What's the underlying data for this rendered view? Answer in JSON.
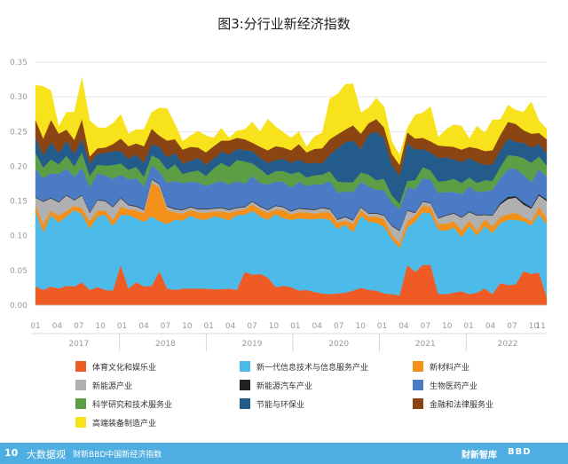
{
  "chart_data": {
    "type": "area",
    "title": "图3:分行业新经济指数",
    "stacked": true,
    "xlabel": "",
    "ylabel": "",
    "ylim": [
      0,
      0.35
    ],
    "yticks": [
      "0.00",
      "0.05",
      "0.10",
      "0.15",
      "0.20",
      "0.25",
      "0.30",
      "0.35"
    ],
    "xlim": [
      2017.0,
      2022.9
    ],
    "xticks": [
      {
        "x": 2017.0,
        "label": "01"
      },
      {
        "x": 2017.25,
        "label": "04"
      },
      {
        "x": 2017.5,
        "label": "07"
      },
      {
        "x": 2017.75,
        "label": "10"
      },
      {
        "x": 2018.0,
        "label": "01"
      },
      {
        "x": 2018.25,
        "label": "04"
      },
      {
        "x": 2018.5,
        "label": "07"
      },
      {
        "x": 2018.75,
        "label": "10"
      },
      {
        "x": 2019.0,
        "label": "01"
      },
      {
        "x": 2019.25,
        "label": "04"
      },
      {
        "x": 2019.5,
        "label": "07"
      },
      {
        "x": 2019.75,
        "label": "10"
      },
      {
        "x": 2020.0,
        "label": "01"
      },
      {
        "x": 2020.25,
        "label": "04"
      },
      {
        "x": 2020.5,
        "label": "07"
      },
      {
        "x": 2020.75,
        "label": "10"
      },
      {
        "x": 2021.0,
        "label": "01"
      },
      {
        "x": 2021.25,
        "label": "04"
      },
      {
        "x": 2021.5,
        "label": "07"
      },
      {
        "x": 2021.75,
        "label": "10"
      },
      {
        "x": 2022.0,
        "label": "01"
      },
      {
        "x": 2022.25,
        "label": "04"
      },
      {
        "x": 2022.5,
        "label": "07"
      },
      {
        "x": 2022.75,
        "label": "10"
      },
      {
        "x": 2022.83,
        "label": "11"
      }
    ],
    "year_labels": [
      {
        "x": 2017.5,
        "label": "2017"
      },
      {
        "x": 2018.5,
        "label": "2018"
      },
      {
        "x": 2019.5,
        "label": "2019"
      },
      {
        "x": 2020.5,
        "label": "2020"
      },
      {
        "x": 2021.5,
        "label": "2021"
      },
      {
        "x": 2022.45,
        "label": "2022"
      }
    ],
    "year_dividers": [
      2017.97,
      2018.97,
      2019.97,
      2020.97,
      2021.97
    ],
    "grid": true,
    "legend_position": "bottom",
    "series_cumulative_note": "",
    "series": [
      {
        "name": "体育文化和娱乐业",
        "color": "#ef5b25",
        "values": [
          0.027,
          0.022,
          0.027,
          0.024,
          0.028,
          0.027,
          0.033,
          0.022,
          0.026,
          0.022,
          0.021,
          0.058,
          0.024,
          0.033,
          0.027,
          0.028,
          0.049,
          0.024,
          0.022,
          0.024,
          0.024,
          0.024,
          0.024,
          0.023,
          0.023,
          0.024,
          0.022,
          0.048,
          0.044,
          0.045,
          0.04,
          0.026,
          0.028,
          0.026,
          0.021,
          0.022,
          0.019,
          0.017,
          0.016,
          0.017,
          0.018,
          0.021,
          0.025,
          0.022,
          0.021,
          0.017,
          0.016,
          0.014,
          0.058,
          0.048,
          0.058,
          0.058,
          0.016,
          0.016,
          0.018,
          0.02,
          0.016,
          0.018,
          0.024,
          0.016,
          0.032,
          0.029,
          0.03,
          0.049,
          0.045,
          0.047,
          0.012
        ]
      },
      {
        "name": "新一代信息技术与信息服务产业",
        "color": "#4dbbe9",
        "values": [
          0.108,
          0.083,
          0.103,
          0.095,
          0.1,
          0.11,
          0.098,
          0.088,
          0.102,
          0.108,
          0.093,
          0.072,
          0.106,
          0.092,
          0.093,
          0.1,
          0.072,
          0.093,
          0.101,
          0.098,
          0.105,
          0.1,
          0.099,
          0.105,
          0.103,
          0.098,
          0.108,
          0.082,
          0.092,
          0.083,
          0.083,
          0.105,
          0.097,
          0.097,
          0.104,
          0.102,
          0.105,
          0.108,
          0.107,
          0.093,
          0.098,
          0.084,
          0.104,
          0.098,
          0.098,
          0.096,
          0.079,
          0.068,
          0.054,
          0.072,
          0.076,
          0.074,
          0.093,
          0.091,
          0.094,
          0.078,
          0.098,
          0.082,
          0.09,
          0.088,
          0.086,
          0.094,
          0.093,
          0.072,
          0.07,
          0.084,
          0.105
        ]
      },
      {
        "name": "新材料产业",
        "color": "#f39019",
        "values": [
          0.008,
          0.012,
          0.006,
          0.01,
          0.008,
          0.006,
          0.009,
          0.011,
          0.008,
          0.006,
          0.009,
          0.012,
          0.008,
          0.012,
          0.012,
          0.048,
          0.049,
          0.02,
          0.011,
          0.01,
          0.008,
          0.01,
          0.01,
          0.007,
          0.009,
          0.011,
          0.006,
          0.008,
          0.009,
          0.01,
          0.01,
          0.007,
          0.012,
          0.008,
          0.009,
          0.01,
          0.008,
          0.009,
          0.011,
          0.009,
          0.006,
          0.012,
          0.008,
          0.007,
          0.009,
          0.011,
          0.007,
          0.007,
          0.009,
          0.009,
          0.009,
          0.01,
          0.008,
          0.01,
          0.009,
          0.01,
          0.008,
          0.007,
          0.01,
          0.009,
          0.009,
          0.008,
          0.01,
          0.006,
          0.006,
          0.011,
          0.008
        ]
      },
      {
        "name": "新能源产业",
        "color": "#b0b0b0",
        "values": [
          0.012,
          0.032,
          0.018,
          0.019,
          0.022,
          0.008,
          0.018,
          0.012,
          0.015,
          0.014,
          0.018,
          0.012,
          0.006,
          0.005,
          0.005,
          0.005,
          0.004,
          0.005,
          0.004,
          0.005,
          0.004,
          0.004,
          0.005,
          0.004,
          0.005,
          0.004,
          0.004,
          0.003,
          0.004,
          0.004,
          0.004,
          0.005,
          0.004,
          0.004,
          0.005,
          0.004,
          0.005,
          0.006,
          0.004,
          0.004,
          0.005,
          0.005,
          0.004,
          0.005,
          0.004,
          0.005,
          0.012,
          0.018,
          0.015,
          0.004,
          0.006,
          0.005,
          0.008,
          0.012,
          0.011,
          0.018,
          0.012,
          0.022,
          0.006,
          0.016,
          0.018,
          0.022,
          0.022,
          0.018,
          0.018,
          0.016,
          0.025
        ]
      },
      {
        "name": "新能源汽车产业",
        "color": "#222222",
        "values": [
          0.001,
          0.001,
          0.001,
          0.001,
          0.001,
          0.001,
          0.001,
          0.001,
          0.001,
          0.001,
          0.001,
          0.001,
          0.001,
          0.001,
          0.001,
          0.001,
          0.001,
          0.001,
          0.001,
          0.001,
          0.001,
          0.001,
          0.001,
          0.001,
          0.001,
          0.001,
          0.001,
          0.001,
          0.001,
          0.001,
          0.001,
          0.001,
          0.001,
          0.001,
          0.001,
          0.001,
          0.001,
          0.001,
          0.001,
          0.001,
          0.001,
          0.001,
          0.001,
          0.001,
          0.001,
          0.001,
          0.001,
          0.001,
          0.001,
          0.001,
          0.001,
          0.001,
          0.001,
          0.001,
          0.001,
          0.001,
          0.001,
          0.001,
          0.001,
          0.001,
          0.002,
          0.003,
          0.002,
          0.003,
          0.002,
          0.002,
          0.002
        ]
      },
      {
        "name": "生物医药产业",
        "color": "#4a7bc4",
        "values": [
          0.04,
          0.033,
          0.035,
          0.04,
          0.038,
          0.033,
          0.039,
          0.036,
          0.038,
          0.036,
          0.04,
          0.033,
          0.036,
          0.04,
          0.033,
          0.02,
          0.017,
          0.033,
          0.04,
          0.038,
          0.036,
          0.038,
          0.033,
          0.036,
          0.038,
          0.036,
          0.038,
          0.033,
          0.036,
          0.033,
          0.036,
          0.034,
          0.036,
          0.033,
          0.038,
          0.033,
          0.036,
          0.033,
          0.04,
          0.038,
          0.036,
          0.04,
          0.036,
          0.038,
          0.033,
          0.036,
          0.033,
          0.03,
          0.033,
          0.033,
          0.033,
          0.033,
          0.036,
          0.033,
          0.03,
          0.033,
          0.036,
          0.033,
          0.033,
          0.036,
          0.036,
          0.04,
          0.04,
          0.04,
          0.036,
          0.036,
          0.033
        ]
      },
      {
        "name": "科学研究和技术服务业",
        "color": "#5c9e45",
        "values": [
          0.023,
          0.015,
          0.02,
          0.014,
          0.018,
          0.015,
          0.022,
          0.016,
          0.012,
          0.014,
          0.02,
          0.016,
          0.014,
          0.016,
          0.014,
          0.014,
          0.018,
          0.019,
          0.024,
          0.013,
          0.014,
          0.017,
          0.014,
          0.021,
          0.026,
          0.025,
          0.03,
          0.032,
          0.018,
          0.02,
          0.013,
          0.015,
          0.015,
          0.02,
          0.014,
          0.012,
          0.013,
          0.014,
          0.014,
          0.016,
          0.013,
          0.014,
          0.013,
          0.017,
          0.014,
          0.016,
          0.01,
          0.008,
          0.009,
          0.013,
          0.016,
          0.013,
          0.016,
          0.016,
          0.019,
          0.016,
          0.013,
          0.013,
          0.016,
          0.013,
          0.016,
          0.02,
          0.018,
          0.024,
          0.028,
          0.018,
          0.016
        ]
      },
      {
        "name": "节能与环保业",
        "color": "#235b8a",
        "values": [
          0.022,
          0.018,
          0.025,
          0.016,
          0.022,
          0.018,
          0.02,
          0.018,
          0.016,
          0.018,
          0.02,
          0.018,
          0.016,
          0.018,
          0.02,
          0.016,
          0.018,
          0.018,
          0.016,
          0.015,
          0.016,
          0.018,
          0.016,
          0.014,
          0.016,
          0.018,
          0.016,
          0.016,
          0.018,
          0.016,
          0.018,
          0.016,
          0.018,
          0.016,
          0.018,
          0.02,
          0.018,
          0.016,
          0.024,
          0.048,
          0.058,
          0.06,
          0.034,
          0.058,
          0.07,
          0.058,
          0.044,
          0.04,
          0.054,
          0.044,
          0.026,
          0.026,
          0.034,
          0.034,
          0.028,
          0.03,
          0.028,
          0.03,
          0.022,
          0.024,
          0.024,
          0.024,
          0.02,
          0.022,
          0.022,
          0.018,
          0.018
        ]
      },
      {
        "name": "金融和法律服务业",
        "color": "#8b4513",
        "values": [
          0.026,
          0.024,
          0.032,
          0.028,
          0.016,
          0.02,
          0.028,
          0.01,
          0.008,
          0.008,
          0.01,
          0.018,
          0.018,
          0.016,
          0.024,
          0.022,
          0.016,
          0.024,
          0.02,
          0.02,
          0.02,
          0.015,
          0.018,
          0.018,
          0.016,
          0.02,
          0.016,
          0.016,
          0.012,
          0.016,
          0.018,
          0.02,
          0.016,
          0.018,
          0.022,
          0.016,
          0.02,
          0.022,
          0.022,
          0.02,
          0.018,
          0.022,
          0.022,
          0.016,
          0.018,
          0.016,
          0.016,
          0.016,
          0.016,
          0.016,
          0.016,
          0.016,
          0.018,
          0.016,
          0.018,
          0.018,
          0.016,
          0.02,
          0.02,
          0.02,
          0.022,
          0.024,
          0.026,
          0.018,
          0.02,
          0.016,
          0.02
        ]
      },
      {
        "name": "高端装备制造产业",
        "color": "#f7e21b",
        "values": [
          0.05,
          0.075,
          0.042,
          0.01,
          0.025,
          0.04,
          0.06,
          0.052,
          0.03,
          0.028,
          0.03,
          0.035,
          0.018,
          0.02,
          0.024,
          0.024,
          0.04,
          0.046,
          0.022,
          0.012,
          0.016,
          0.024,
          0.024,
          0.012,
          0.018,
          0.004,
          0.01,
          0.014,
          0.03,
          0.022,
          0.045,
          0.028,
          0.022,
          0.018,
          0.018,
          0.008,
          0.018,
          0.022,
          0.058,
          0.058,
          0.065,
          0.06,
          0.03,
          0.022,
          0.03,
          0.03,
          0.018,
          0.014,
          0.006,
          0.034,
          0.036,
          0.05,
          0.012,
          0.024,
          0.032,
          0.034,
          0.012,
          0.032,
          0.026,
          0.044,
          0.022,
          0.024,
          0.02,
          0.026,
          0.046,
          0.018,
          0.015
        ]
      }
    ]
  },
  "legend": [
    {
      "label": "体育文化和娱乐业",
      "color": "#ef5b25"
    },
    {
      "label": "新一代信息技术与信息服务产业",
      "color": "#4dbbe9"
    },
    {
      "label": "新材料产业",
      "color": "#f39019"
    },
    {
      "label": "新能源产业",
      "color": "#b0b0b0"
    },
    {
      "label": "新能源汽车产业",
      "color": "#222222"
    },
    {
      "label": "生物医药产业",
      "color": "#4a7bc4"
    },
    {
      "label": "科学研究和技术服务业",
      "color": "#5c9e45"
    },
    {
      "label": "节能与环保业",
      "color": "#235b8a"
    },
    {
      "label": "金融和法律服务业",
      "color": "#8b4513"
    },
    {
      "label": "高端装备制造产业",
      "color": "#f7e21b"
    }
  ],
  "footer": {
    "logo_mark": "10",
    "brand": "大数据观",
    "caption": "财新BBD中国新经济指数",
    "right_logo": "财新智库",
    "right_logo2": "BBD"
  },
  "colors": {
    "footer_bg": "#4faee1",
    "grid": "#dddddd",
    "axis_text": "#999999"
  }
}
